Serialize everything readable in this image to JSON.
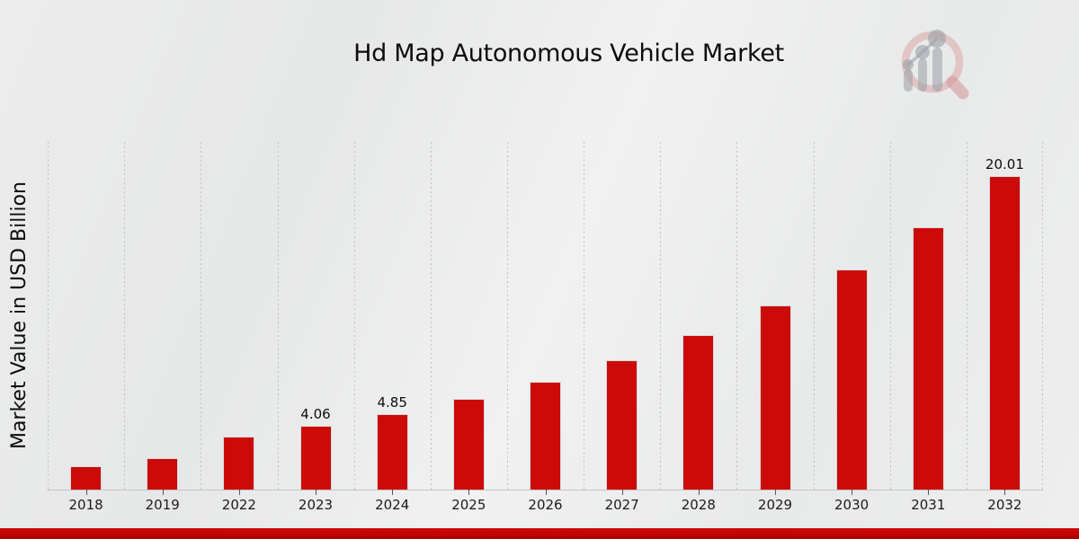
{
  "page": {
    "title": "Hd Map Autonomous Vehicle Market"
  },
  "chart_data": {
    "type": "bar",
    "title": "Hd Map Autonomous Vehicle Market",
    "xlabel": "",
    "ylabel": "Market Value in USD Billion",
    "categories": [
      "2018",
      "2019",
      "2022",
      "2023",
      "2024",
      "2025",
      "2026",
      "2027",
      "2028",
      "2029",
      "2030",
      "2031",
      "2032"
    ],
    "values": [
      1.5,
      2.0,
      3.4,
      4.06,
      4.85,
      5.79,
      6.91,
      8.25,
      9.85,
      11.76,
      14.04,
      16.76,
      20.01
    ],
    "bar_labels": [
      "",
      "",
      "",
      "4.06",
      "4.85",
      "",
      "",
      "",
      "",
      "",
      "",
      "",
      "20.01"
    ],
    "ylim": [
      0,
      22.2
    ],
    "grid": "vertical-dashed",
    "legend": "none",
    "colors": {
      "bar": "#cc0a0a",
      "accent_stripe": "#c40404",
      "gridline": "#c2c2c2",
      "text": "#0d0d0d"
    }
  }
}
